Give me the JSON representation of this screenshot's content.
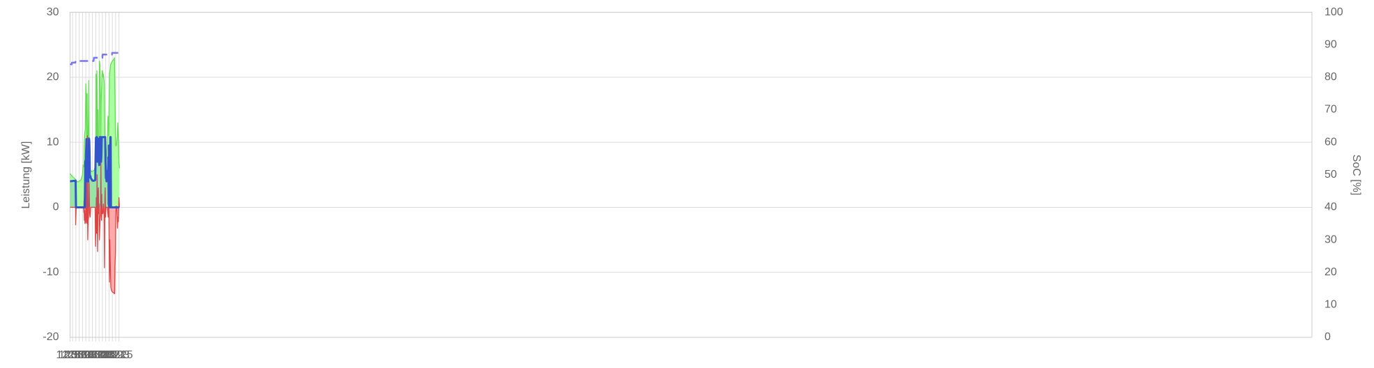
{
  "chart_data": {
    "type": "area",
    "y_label": "Leistung [kW]",
    "y2_label": "SoC [%]",
    "grid": true,
    "xlim": [
      775.48,
      1525.32
    ],
    "xticks": [
      {
        "value": 775,
        "label": "12:55"
      },
      {
        "value": 777,
        "label": "12:57"
      },
      {
        "value": 779,
        "label": "12:59"
      },
      {
        "value": 781,
        "label": "13:01"
      },
      {
        "value": 783,
        "label": "13:03"
      },
      {
        "value": 785,
        "label": "13:05"
      },
      {
        "value": 787,
        "label": "13:07"
      },
      {
        "value": 789,
        "label": "13:09"
      },
      {
        "value": 791,
        "label": "13:11"
      },
      {
        "value": 793,
        "label": "13:13"
      },
      {
        "value": 795,
        "label": "13:15"
      },
      {
        "value": 797,
        "label": "13:17"
      },
      {
        "value": 799,
        "label": "13:19"
      },
      {
        "value": 801,
        "label": "13:21"
      },
      {
        "value": 803,
        "label": "13:23"
      },
      {
        "value": 805,
        "label": "13:25"
      }
    ],
    "ylim": [
      -20,
      30
    ],
    "yticks": [
      -20,
      -10,
      0,
      10,
      20,
      30
    ],
    "y2lim": [
      0,
      100
    ],
    "y2ticks": [
      0,
      10,
      20,
      30,
      40,
      50,
      60,
      70,
      80,
      90,
      100
    ],
    "series": [
      {
        "color": "#66dd55",
        "fill": "#aaffa0",
        "x": [
          775.5,
          776,
          777,
          778,
          779,
          780,
          781,
          782,
          783,
          783.4,
          783.8,
          784,
          784.4,
          784.7,
          785,
          785.3,
          785.6,
          785.8,
          786,
          786.3,
          786.6,
          786.8,
          787,
          787.3,
          788,
          789,
          790,
          791,
          791.1,
          791.3,
          791.5,
          791.7,
          791.9,
          792.1,
          792.3,
          792.5,
          792.7,
          793,
          793.2,
          793.5,
          793.8,
          794,
          794.2,
          794.5,
          794.8,
          795,
          795.4,
          795.6,
          795.8,
          796.2,
          796.5,
          796.8,
          797,
          797.5,
          798,
          798.4,
          798.6,
          798.8,
          799,
          799.3,
          799.6,
          800,
          801,
          802,
          802.3,
          802.6,
          803,
          803.5,
          804,
          804.3,
          804.6,
          805,
          805.3
        ],
        "values": [
          5.2,
          5.0,
          4.7,
          4.5,
          4.2,
          3.9,
          4.0,
          4.2,
          5.0,
          6.5,
          6.2,
          9.5,
          11.5,
          12,
          19,
          17,
          7,
          17.5,
          7,
          9,
          14,
          19.5,
          10,
          6,
          5.6,
          5.5,
          5.7,
          6.5,
          20.5,
          19,
          7,
          21,
          15,
          7,
          15,
          8,
          10,
          8.5,
          22.5,
          22,
          18,
          10,
          16,
          18,
          21,
          21,
          20,
          20.5,
          20,
          19,
          11,
          7,
          7,
          7.5,
          10,
          14,
          13,
          11,
          15,
          20.5,
          21,
          22,
          22.5,
          22.8,
          23,
          17,
          9.5,
          9.5,
          11,
          13,
          11,
          7,
          6
        ]
      },
      {
        "color": "#dd4444",
        "fill": "#ffaaaa",
        "x": [
          775.5,
          778.8,
          778.85,
          779.2,
          783.6,
          783.8,
          783.9,
          784.1,
          784.3,
          784.5,
          784.7,
          784.9,
          785.1,
          785.3,
          785.5,
          785.75,
          785.95,
          786.15,
          786.4,
          786.6,
          786.8,
          787,
          787.3,
          787.6,
          788,
          789,
          790,
          790.6,
          790.87,
          791.1,
          791.3,
          791.5,
          791.8,
          792.1,
          792.4,
          792.6,
          792.8,
          793,
          793.2,
          793.6,
          793.9,
          794.1,
          794.3,
          794.5,
          794.6,
          794.8,
          795.2,
          795.6,
          795.9,
          796,
          796.26,
          796.5,
          796.7,
          796.9,
          797.2,
          798,
          798.5,
          798.8,
          799,
          799.25,
          799.5,
          799.8,
          800.1,
          800.5,
          801,
          802,
          802.4,
          802.6,
          802.9,
          803.1,
          803.3,
          803.7,
          804.1,
          804.4,
          804.6,
          804.8,
          805,
          805.3
        ],
        "values": [
          0,
          0,
          -2.7,
          0,
          0,
          -0.8,
          1,
          -2,
          -0.5,
          -2.5,
          -1,
          -2.4,
          3,
          5.5,
          -2.2,
          -2.5,
          11,
          -5,
          -2,
          -1.5,
          4.2,
          3.5,
          -1,
          -1.5,
          0,
          0,
          0,
          0,
          -6,
          -3,
          1.5,
          -4,
          5,
          -6.8,
          2.5,
          3,
          -1,
          0.5,
          -5,
          -2,
          -1,
          7,
          -1,
          -2,
          2,
          -1,
          -1,
          0.5,
          -1,
          -1,
          -9.3,
          1.5,
          3,
          -1.5,
          0,
          0,
          -1.5,
          3.5,
          -3,
          -11.5,
          -5,
          -9,
          -12.3,
          -12.8,
          -13,
          -13.2,
          -13.3,
          -9,
          -7,
          -1,
          0.2,
          0,
          -3.2,
          -1.5,
          -2.2,
          -0.5,
          1.5,
          0
        ]
      },
      {
        "color": "#3355cc",
        "fill": "rgba(60,110,200,0.18)",
        "x": [
          775.5,
          778.85,
          779.05,
          783.9,
          784.33,
          784.7,
          785,
          785.2,
          785.4,
          785.5,
          785.75,
          785.9,
          786.1,
          786.3,
          786.5,
          786.7,
          786.9,
          787.1,
          787.3,
          787.45,
          787.8,
          788,
          789,
          790,
          790.7,
          790.9,
          791.1,
          791.5,
          791.9,
          792.1,
          792.4,
          792.6,
          792.75,
          792.9,
          793.1,
          793.35,
          793.5,
          794,
          794.2,
          794.4,
          794.6,
          795,
          796,
          796.7,
          796.9,
          797.1,
          797.3,
          797.5,
          797.7,
          798,
          798.4,
          798.6,
          798.8,
          798.95,
          799.15,
          799.35,
          799.6,
          799.8,
          800,
          800.2,
          805.3
        ],
        "values": [
          4,
          4.1,
          0,
          0,
          0,
          7,
          7.3,
          9,
          10.5,
          6,
          4,
          7.2,
          7,
          4.5,
          4,
          8,
          10.6,
          10.3,
          8,
          4.6,
          4.8,
          4.5,
          4.1,
          4.1,
          4.2,
          8,
          10.7,
          10.8,
          10.7,
          7,
          7.1,
          10.5,
          8.3,
          8,
          6.5,
          7.4,
          10.8,
          10.8,
          7,
          8,
          10.8,
          10.8,
          10.8,
          10.8,
          7,
          4.5,
          4.6,
          4,
          5,
          5.3,
          5.8,
          7.7,
          0.5,
          9.5,
          0,
          0,
          8.5,
          10.8,
          10.8,
          0,
          0
        ]
      },
      {
        "color": "#7777ee",
        "axis": "y2",
        "dashed": true,
        "x": [
          775.5,
          776.5,
          776.6,
          778.7,
          778.8,
          789.7,
          789.9,
          795,
          795.1,
          800.8,
          800.9,
          805.3
        ],
        "values": [
          84,
          84,
          84.5,
          84.5,
          85,
          85,
          86,
          86,
          87,
          87,
          87.5,
          87.5
        ]
      }
    ]
  }
}
